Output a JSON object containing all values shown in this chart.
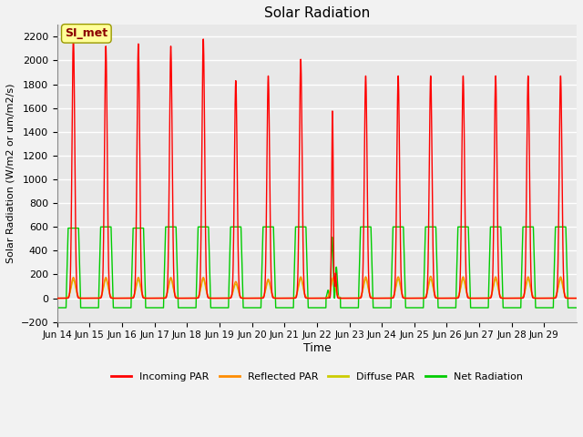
{
  "title": "Solar Radiation",
  "ylabel": "Solar Radiation (W/m2 or um/m2/s)",
  "xlabel": "Time",
  "ylim": [
    -200,
    2300
  ],
  "yticks": [
    -200,
    0,
    200,
    400,
    600,
    800,
    1000,
    1200,
    1400,
    1600,
    1800,
    2000,
    2200
  ],
  "num_days": 16,
  "xtick_labels": [
    "Jun 14",
    "Jun 15",
    "Jun 16",
    "Jun 17",
    "Jun 18",
    "Jun 19",
    "Jun 20",
    "Jun 21",
    "Jun 22",
    "Jun 23",
    "Jun 24",
    "Jun 25",
    "Jun 26",
    "Jun 27",
    "Jun 28",
    "Jun 29"
  ],
  "annotation_text": "SI_met",
  "annotation_color": "#8B0000",
  "annotation_bg": "#FFFF99",
  "line_colors": {
    "incoming": "#FF0000",
    "reflected": "#FF8C00",
    "diffuse": "#CCCC00",
    "net": "#00CC00"
  },
  "background_color": "#E8E8E8",
  "grid_color": "#FFFFFF",
  "incoming_peaks": [
    2200,
    2120,
    2140,
    2120,
    2180,
    1830,
    1870,
    2010,
    1660,
    1870,
    1870,
    1870,
    1870,
    1870,
    1870,
    1870
  ],
  "net_peaks": [
    590,
    600,
    590,
    600,
    600,
    600,
    600,
    600,
    560,
    600,
    600,
    600,
    600,
    600,
    600,
    600
  ],
  "reflected_peaks": [
    175,
    175,
    175,
    175,
    175,
    140,
    160,
    180,
    175,
    180,
    180,
    185,
    180,
    180,
    180,
    180
  ],
  "diffuse_peaks": [
    155,
    160,
    155,
    160,
    160,
    120,
    145,
    165,
    155,
    160,
    160,
    160,
    160,
    160,
    160,
    160
  ],
  "night_net_val": -80,
  "points_per_day": 200
}
